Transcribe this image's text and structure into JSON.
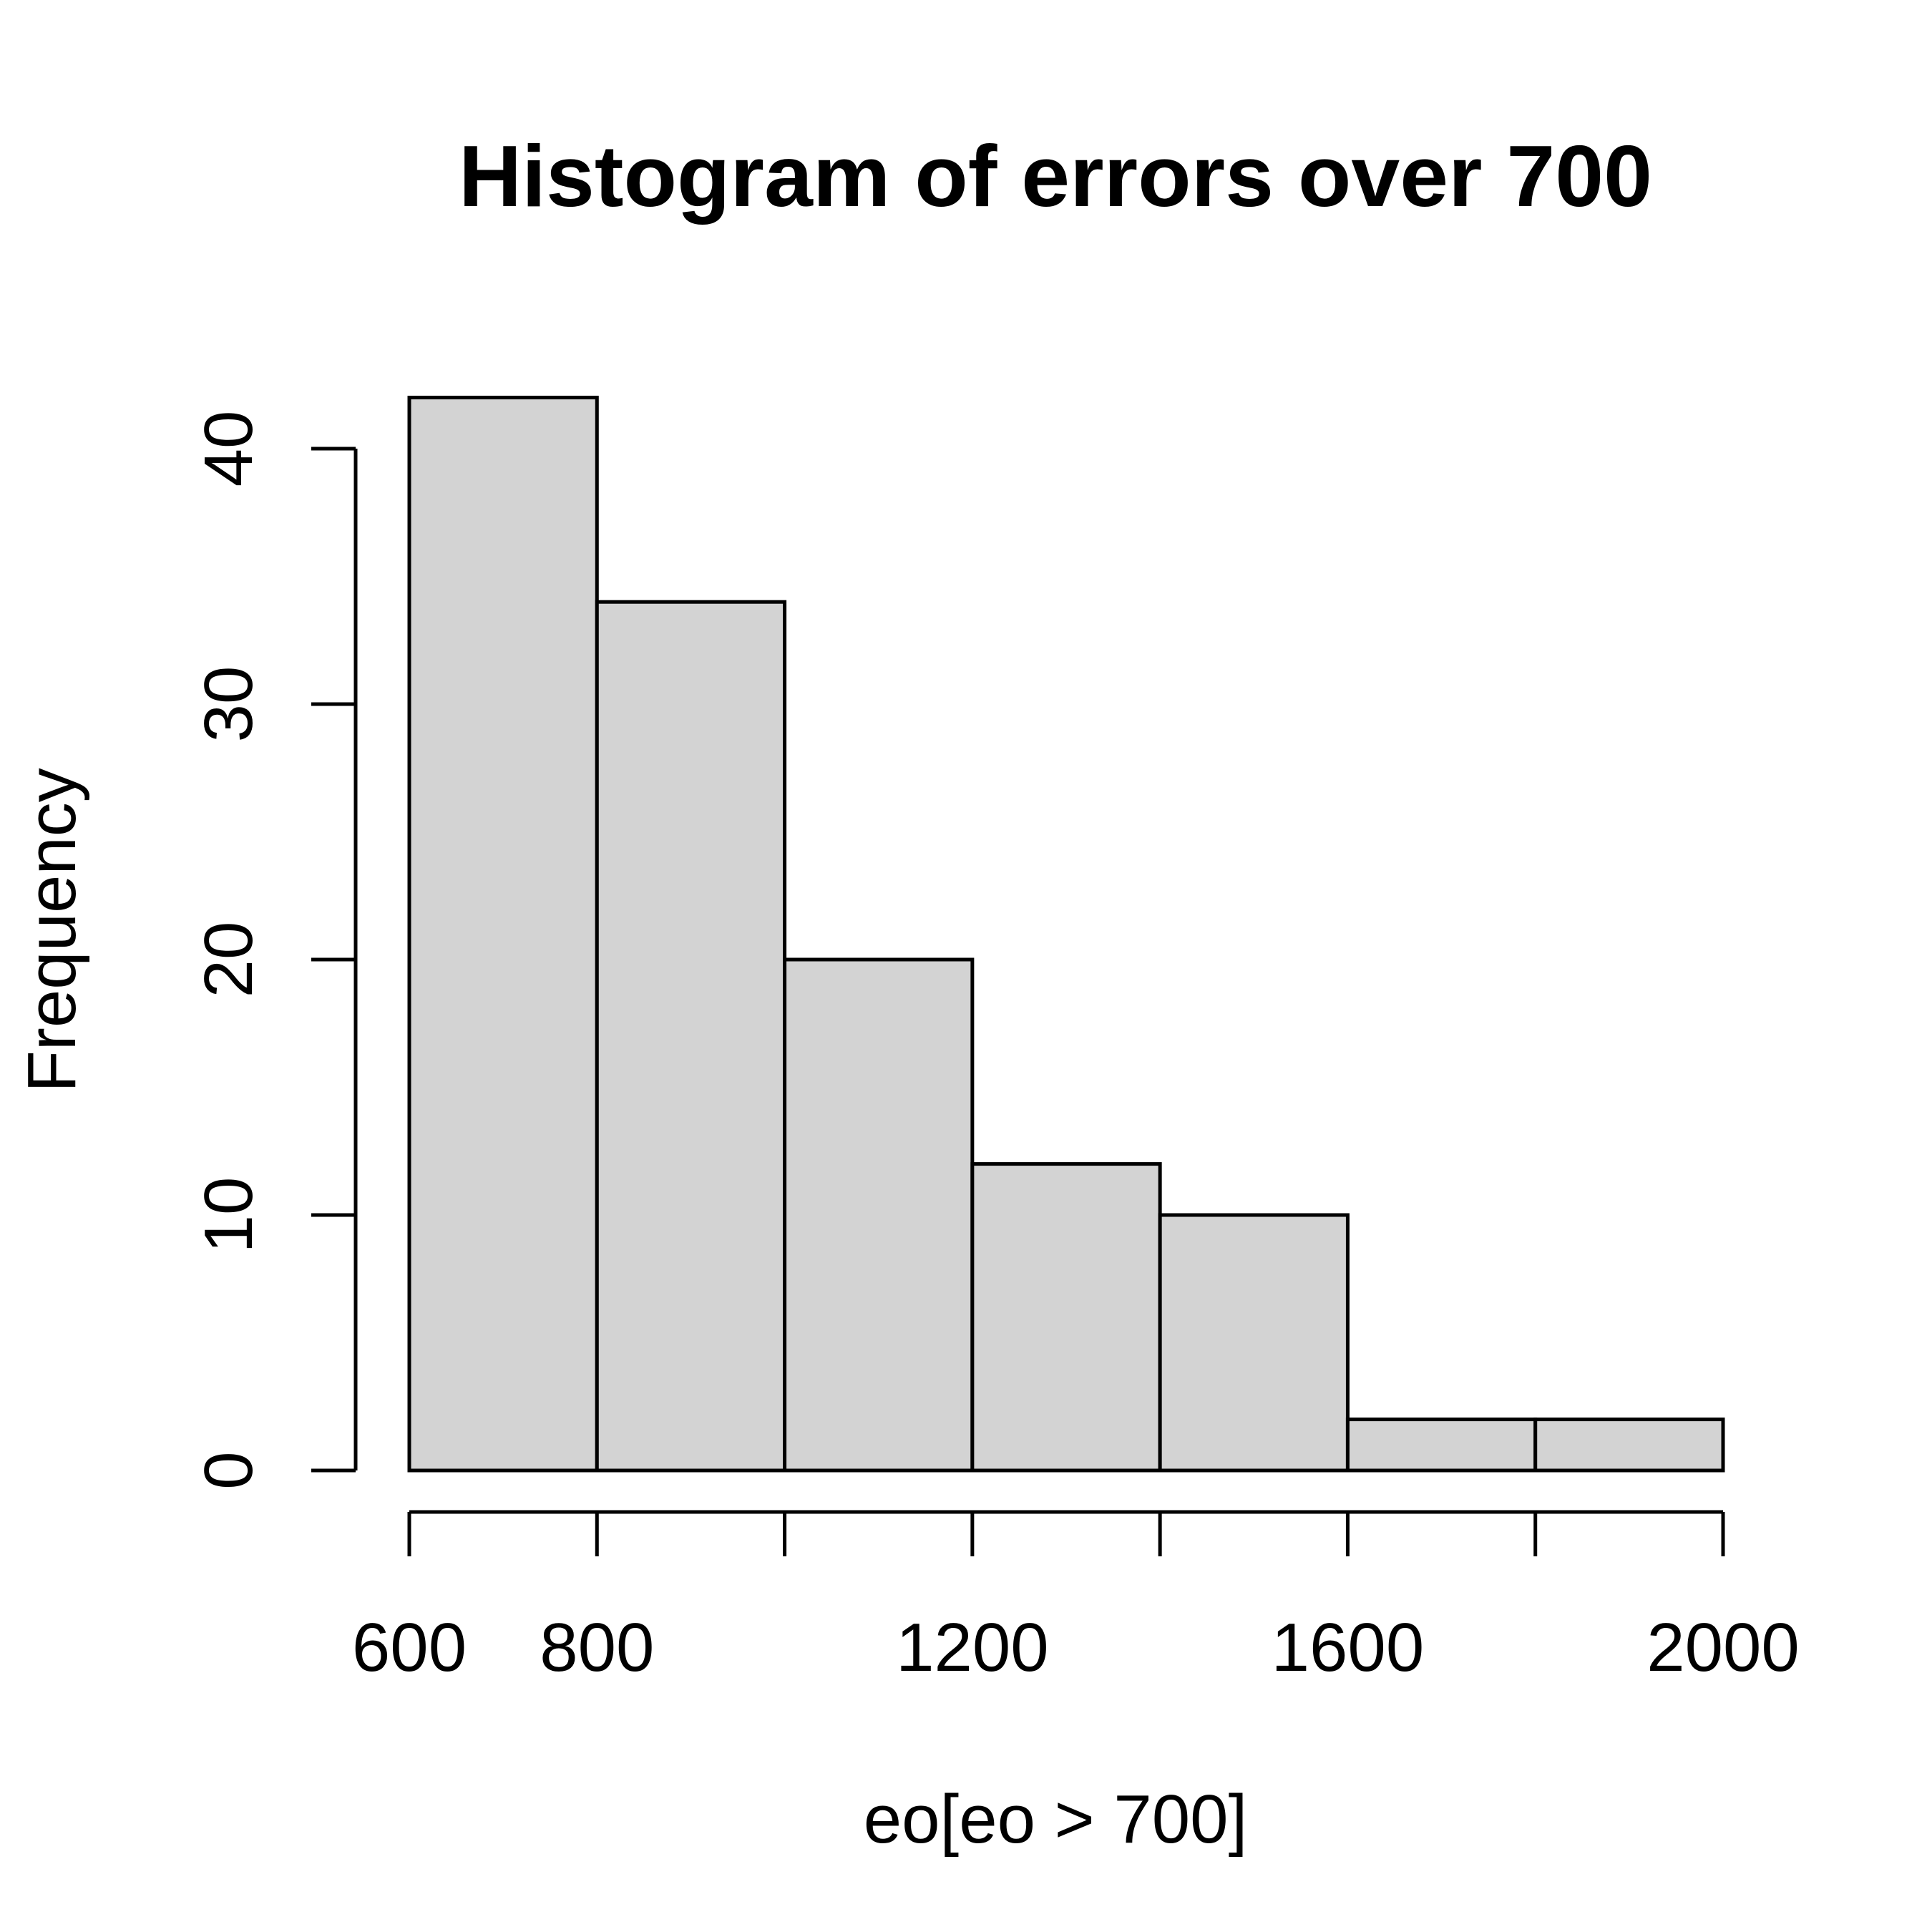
{
  "chart_data": {
    "type": "bar",
    "title": "Histogram of errors over 700",
    "xlabel": "eo[eo > 700]",
    "ylabel": "Frequency",
    "bin_edges": [
      600,
      800,
      1000,
      1200,
      1400,
      1600,
      1800,
      2000
    ],
    "values": [
      42,
      34,
      20,
      12,
      10,
      2,
      2
    ],
    "xlim": [
      600,
      2000
    ],
    "ylim": [
      0,
      42
    ],
    "x_ticks": [
      600,
      800,
      1000,
      1200,
      1400,
      1600,
      1800,
      2000
    ],
    "x_tick_labels": [
      "600",
      "800",
      "",
      "1200",
      "",
      "1600",
      "",
      "2000"
    ],
    "y_ticks": [
      0,
      10,
      20,
      30,
      40
    ],
    "y_tick_labels": [
      "0",
      "10",
      "20",
      "30",
      "40"
    ],
    "grid": false,
    "bar_fill": "#d3d3d3",
    "bar_stroke": "#000000"
  }
}
